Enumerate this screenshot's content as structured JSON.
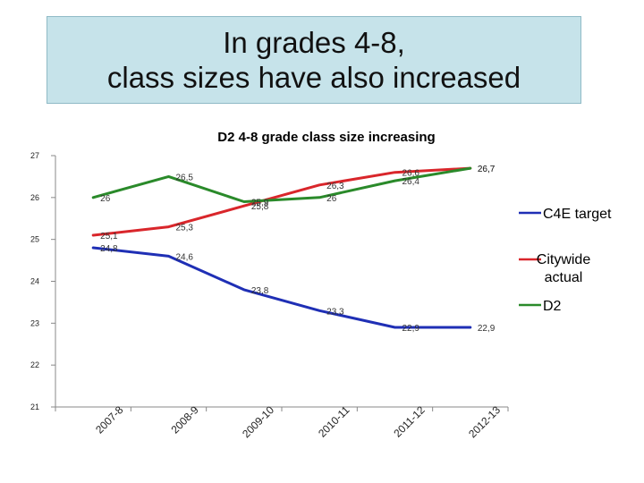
{
  "slide": {
    "title_line1": "In grades 4-8,",
    "title_line2": "class sizes have also increased"
  },
  "chart_data": {
    "type": "line",
    "title": "D2 4-8 grade class size increasing",
    "xlabel": "",
    "ylabel": "",
    "categories": [
      "2007-8",
      "2008-9",
      "2009-10",
      "2010-11",
      "2011-12",
      "2012-13"
    ],
    "ylim": [
      21,
      27
    ],
    "yticks": [
      21,
      22,
      23,
      24,
      25,
      26,
      27
    ],
    "legend_position": "right",
    "series": [
      {
        "name": "C4E target",
        "color": "#1f2fb5",
        "values": [
          24.8,
          24.6,
          23.8,
          23.3,
          22.9,
          22.9
        ],
        "value_labels": [
          "24,8",
          "24,6",
          "23,8",
          "23,3",
          "22,9",
          "22,9"
        ]
      },
      {
        "name": "Citywide actual",
        "color": "#d9262b",
        "values": [
          25.1,
          25.3,
          25.8,
          26.3,
          26.6,
          26.7
        ],
        "value_labels": [
          "25,1",
          "25,3",
          "25,8",
          "26,3",
          "26,6",
          "26,7"
        ]
      },
      {
        "name": "D2",
        "color": "#2a8a2a",
        "values": [
          26,
          26.5,
          25.9,
          26,
          26.4,
          26.7
        ],
        "value_labels": [
          "26",
          "26,5",
          "25,9",
          "26",
          "26,4",
          "26,7"
        ]
      }
    ]
  }
}
